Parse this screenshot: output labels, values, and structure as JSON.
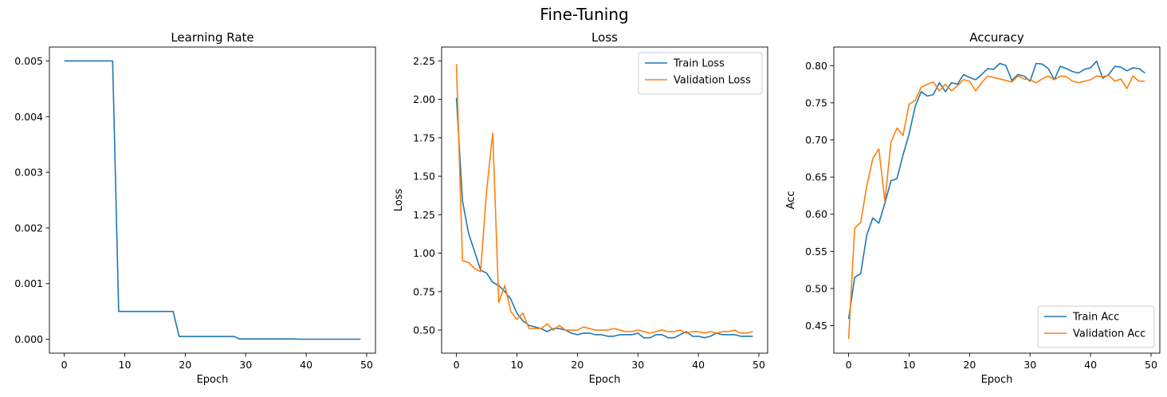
{
  "figure": {
    "title": "Fine-Tuning"
  },
  "colors": {
    "train": "#1f77b4",
    "validation": "#ff7f0e",
    "axes": "#000000",
    "legend_border": "#cccccc"
  },
  "chart_data": [
    {
      "type": "line",
      "title": "Learning Rate",
      "xlabel": "Epoch",
      "ylabel": "",
      "xlim": [
        -2.45,
        51.45
      ],
      "ylim": [
        -0.00025,
        0.00525
      ],
      "xticks": [
        0,
        10,
        20,
        30,
        40,
        50
      ],
      "xtick_labels": [
        "0",
        "10",
        "20",
        "30",
        "40",
        "50"
      ],
      "yticks": [
        0,
        0.001,
        0.002,
        0.003,
        0.004,
        0.005
      ],
      "ytick_labels": [
        "0.000",
        "0.001",
        "0.002",
        "0.003",
        "0.004",
        "0.005"
      ],
      "legend": "none",
      "grid": false,
      "x": [
        0,
        1,
        2,
        3,
        4,
        5,
        6,
        7,
        8,
        9,
        10,
        11,
        12,
        13,
        14,
        15,
        16,
        17,
        18,
        19,
        20,
        21,
        22,
        23,
        24,
        25,
        26,
        27,
        28,
        29,
        30,
        31,
        32,
        33,
        34,
        35,
        36,
        37,
        38,
        39,
        40,
        41,
        42,
        43,
        44,
        45,
        46,
        47,
        48,
        49
      ],
      "series": [
        {
          "name": "",
          "color_key": "train",
          "values": [
            0.005,
            0.005,
            0.005,
            0.005,
            0.005,
            0.005,
            0.005,
            0.005,
            0.005,
            0.0005,
            0.0005,
            0.0005,
            0.0005,
            0.0005,
            0.0005,
            0.0005,
            0.0005,
            0.0005,
            0.0005,
            5e-05,
            5e-05,
            5e-05,
            5e-05,
            5e-05,
            5e-05,
            5e-05,
            5e-05,
            5e-05,
            5e-05,
            5e-06,
            5e-06,
            5e-06,
            5e-06,
            5e-06,
            5e-06,
            5e-06,
            5e-06,
            5e-06,
            5e-06,
            5e-07,
            5e-07,
            5e-07,
            5e-07,
            5e-07,
            5e-07,
            5e-07,
            5e-07,
            5e-07,
            5e-07,
            5e-07
          ]
        }
      ]
    },
    {
      "type": "line",
      "title": "Loss",
      "xlabel": "Epoch",
      "ylabel": "Loss",
      "xlim": [
        -2.45,
        51.45
      ],
      "ylim": [
        0.35,
        2.34
      ],
      "xticks": [
        0,
        10,
        20,
        30,
        40,
        50
      ],
      "xtick_labels": [
        "0",
        "10",
        "20",
        "30",
        "40",
        "50"
      ],
      "yticks": [
        0.5,
        0.75,
        1.0,
        1.25,
        1.5,
        1.75,
        2.0,
        2.25
      ],
      "ytick_labels": [
        "0.50",
        "0.75",
        "1.00",
        "1.25",
        "1.50",
        "1.75",
        "2.00",
        "2.25"
      ],
      "legend": "top-right",
      "grid": false,
      "x": [
        0,
        1,
        2,
        3,
        4,
        5,
        6,
        7,
        8,
        9,
        10,
        11,
        12,
        13,
        14,
        15,
        16,
        17,
        18,
        19,
        20,
        21,
        22,
        23,
        24,
        25,
        26,
        27,
        28,
        29,
        30,
        31,
        32,
        33,
        34,
        35,
        36,
        37,
        38,
        39,
        40,
        41,
        42,
        43,
        44,
        45,
        46,
        47,
        48,
        49
      ],
      "series": [
        {
          "name": "Train Loss",
          "color_key": "train",
          "values": [
            2.01,
            1.34,
            1.13,
            1.01,
            0.89,
            0.87,
            0.81,
            0.79,
            0.75,
            0.7,
            0.61,
            0.56,
            0.53,
            0.52,
            0.51,
            0.49,
            0.51,
            0.51,
            0.5,
            0.48,
            0.47,
            0.48,
            0.48,
            0.47,
            0.47,
            0.46,
            0.46,
            0.47,
            0.47,
            0.47,
            0.48,
            0.45,
            0.45,
            0.47,
            0.47,
            0.45,
            0.45,
            0.47,
            0.49,
            0.46,
            0.46,
            0.45,
            0.46,
            0.48,
            0.47,
            0.47,
            0.47,
            0.46,
            0.46,
            0.46
          ]
        },
        {
          "name": "Validation Loss",
          "color_key": "validation",
          "values": [
            2.23,
            0.95,
            0.94,
            0.9,
            0.88,
            1.41,
            1.78,
            0.68,
            0.79,
            0.62,
            0.57,
            0.61,
            0.51,
            0.51,
            0.51,
            0.54,
            0.5,
            0.53,
            0.5,
            0.5,
            0.5,
            0.52,
            0.51,
            0.5,
            0.5,
            0.5,
            0.51,
            0.5,
            0.49,
            0.49,
            0.5,
            0.49,
            0.48,
            0.49,
            0.5,
            0.49,
            0.49,
            0.5,
            0.48,
            0.49,
            0.49,
            0.48,
            0.49,
            0.48,
            0.49,
            0.49,
            0.5,
            0.48,
            0.48,
            0.49
          ]
        }
      ]
    },
    {
      "type": "line",
      "title": "Accuracy",
      "xlabel": "Epoch",
      "ylabel": "Acc",
      "xlim": [
        -2.45,
        51.45
      ],
      "ylim": [
        0.413,
        0.825
      ],
      "xticks": [
        0,
        10,
        20,
        30,
        40,
        50
      ],
      "xtick_labels": [
        "0",
        "10",
        "20",
        "30",
        "40",
        "50"
      ],
      "yticks": [
        0.45,
        0.5,
        0.55,
        0.6,
        0.65,
        0.7,
        0.75,
        0.8
      ],
      "ytick_labels": [
        "0.45",
        "0.50",
        "0.55",
        "0.60",
        "0.65",
        "0.70",
        "0.75",
        "0.80"
      ],
      "legend": "bottom-right",
      "grid": false,
      "x": [
        0,
        1,
        2,
        3,
        4,
        5,
        6,
        7,
        8,
        9,
        10,
        11,
        12,
        13,
        14,
        15,
        16,
        17,
        18,
        19,
        20,
        21,
        22,
        23,
        24,
        25,
        26,
        27,
        28,
        29,
        30,
        31,
        32,
        33,
        34,
        35,
        36,
        37,
        38,
        39,
        40,
        41,
        42,
        43,
        44,
        45,
        46,
        47,
        48,
        49
      ],
      "series": [
        {
          "name": "Train Acc",
          "color_key": "train",
          "values": [
            0.459,
            0.515,
            0.52,
            0.572,
            0.595,
            0.588,
            0.615,
            0.645,
            0.648,
            0.68,
            0.708,
            0.745,
            0.765,
            0.759,
            0.761,
            0.777,
            0.765,
            0.777,
            0.775,
            0.788,
            0.784,
            0.781,
            0.788,
            0.796,
            0.795,
            0.803,
            0.8,
            0.78,
            0.788,
            0.786,
            0.779,
            0.803,
            0.802,
            0.796,
            0.781,
            0.799,
            0.796,
            0.792,
            0.79,
            0.795,
            0.797,
            0.806,
            0.783,
            0.788,
            0.799,
            0.798,
            0.793,
            0.797,
            0.796,
            0.79
          ]
        },
        {
          "name": "Validation Acc",
          "color_key": "validation",
          "values": [
            0.432,
            0.581,
            0.589,
            0.638,
            0.675,
            0.688,
            0.617,
            0.697,
            0.716,
            0.706,
            0.748,
            0.753,
            0.771,
            0.775,
            0.778,
            0.766,
            0.775,
            0.766,
            0.773,
            0.781,
            0.779,
            0.766,
            0.777,
            0.786,
            0.784,
            0.782,
            0.78,
            0.778,
            0.786,
            0.782,
            0.781,
            0.777,
            0.782,
            0.786,
            0.781,
            0.786,
            0.785,
            0.779,
            0.777,
            0.779,
            0.781,
            0.786,
            0.785,
            0.787,
            0.779,
            0.782,
            0.769,
            0.786,
            0.779,
            0.779
          ]
        }
      ]
    }
  ]
}
